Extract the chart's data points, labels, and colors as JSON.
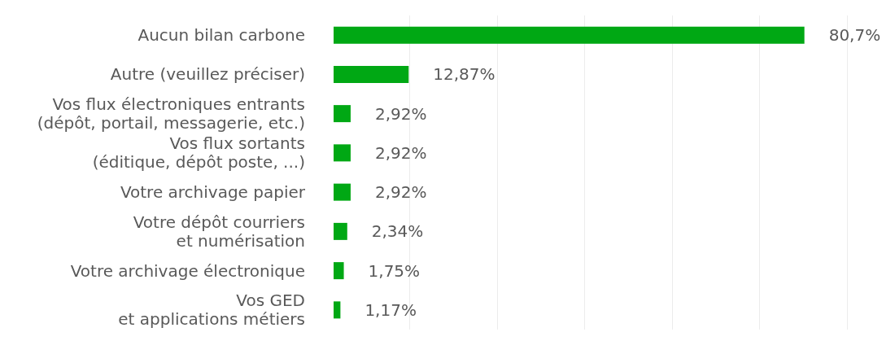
{
  "chart_data": {
    "type": "bar",
    "orientation": "horizontal",
    "categories": [
      "Aucun bilan carbone",
      "Autre (veuillez préciser)",
      "Vos flux électroniques entrants\n(dépôt, portail, messagerie, etc.)",
      "Vos flux sortants\n(éditique, dépôt poste, ...)",
      "Votre archivage papier",
      "Votre dépôt courriers\net numérisation",
      "Votre archivage électronique",
      "Vos GED\net applications métiers"
    ],
    "values": [
      80.7,
      12.87,
      2.92,
      2.92,
      2.92,
      2.34,
      1.75,
      1.17
    ],
    "value_labels": [
      "80,7%",
      "12,87%",
      "2,92%",
      "2,92%",
      "2,92%",
      "2,34%",
      "1,75%",
      "1,17%"
    ],
    "color": "#00a814",
    "xlim": [
      0,
      88
    ],
    "xticks": [
      {
        "value": 13,
        "label": null
      },
      {
        "value": 28,
        "label": null
      },
      {
        "value": 43,
        "label": null
      },
      {
        "value": 58,
        "label": null
      },
      {
        "value": 73,
        "label": null
      },
      {
        "value": 88,
        "label": null
      }
    ],
    "grid": "x",
    "tick_labels": "y"
  }
}
